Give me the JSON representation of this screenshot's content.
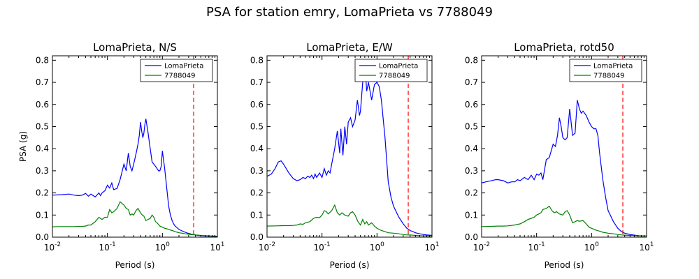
{
  "figure": {
    "title": "PSA for station emry, LomaPrieta vs 7788049"
  },
  "colors": {
    "series1": "#0000ff",
    "series2": "#008000",
    "marker": "#ff0000"
  },
  "chart_data": [
    {
      "type": "line",
      "title": "LomaPrieta, N/S",
      "xlabel": "Period (s)",
      "ylabel": "PSA (g)",
      "xscale": "log",
      "xlim": [
        0.01,
        10
      ],
      "ylim": [
        0,
        0.82
      ],
      "yticks": [
        "0.0",
        "0.1",
        "0.2",
        "0.3",
        "0.4",
        "0.5",
        "0.6",
        "0.7",
        "0.8"
      ],
      "xticks": [
        {
          "base": "10",
          "exp": "-2"
        },
        {
          "base": "10",
          "exp": "-1"
        },
        {
          "base": "10",
          "exp": "0"
        },
        {
          "base": "10",
          "exp": "1"
        }
      ],
      "vline": 3.7,
      "legend": "upper-right",
      "series": [
        {
          "name": "LomaPrieta",
          "color": "#0000ff",
          "x": [
            0.01,
            0.015,
            0.02,
            0.025,
            0.03,
            0.035,
            0.04,
            0.045,
            0.05,
            0.06,
            0.07,
            0.075,
            0.08,
            0.09,
            0.1,
            0.11,
            0.12,
            0.13,
            0.15,
            0.17,
            0.2,
            0.22,
            0.24,
            0.26,
            0.28,
            0.3,
            0.32,
            0.34,
            0.36,
            0.38,
            0.4,
            0.42,
            0.44,
            0.46,
            0.48,
            0.5,
            0.55,
            0.6,
            0.65,
            0.7,
            0.75,
            0.8,
            0.85,
            0.9,
            0.95,
            1.0,
            1.1,
            1.2,
            1.3,
            1.4,
            1.5,
            1.6,
            1.7,
            1.8,
            1.9,
            2.0,
            2.2,
            2.4,
            2.6,
            2.8,
            3.0,
            3.2,
            3.4,
            3.6,
            3.8,
            4.0,
            4.2,
            4.4,
            4.6,
            4.8,
            5.0,
            5.5,
            6.0,
            6.5,
            7.0,
            7.5,
            8.0,
            8.5,
            9.0,
            9.5,
            10.0
          ],
          "y": [
            0.19,
            0.192,
            0.195,
            0.19,
            0.188,
            0.19,
            0.198,
            0.185,
            0.195,
            0.182,
            0.2,
            0.188,
            0.2,
            0.21,
            0.235,
            0.222,
            0.245,
            0.215,
            0.22,
            0.26,
            0.33,
            0.3,
            0.38,
            0.32,
            0.3,
            0.33,
            0.36,
            0.39,
            0.42,
            0.46,
            0.52,
            0.48,
            0.45,
            0.47,
            0.51,
            0.535,
            0.47,
            0.4,
            0.34,
            0.33,
            0.32,
            0.31,
            0.3,
            0.3,
            0.32,
            0.39,
            0.31,
            0.22,
            0.14,
            0.1,
            0.075,
            0.06,
            0.05,
            0.045,
            0.04,
            0.035,
            0.03,
            0.026,
            0.022,
            0.019,
            0.017,
            0.015,
            0.013,
            0.012,
            0.011,
            0.01,
            0.009,
            0.008,
            0.008,
            0.007,
            0.007,
            0.006,
            0.005,
            0.005,
            0.004,
            0.004,
            0.004,
            0.003,
            0.003,
            0.003,
            0.003
          ]
        },
        {
          "name": "7788049",
          "color": "#008000",
          "x": [
            0.01,
            0.015,
            0.02,
            0.025,
            0.03,
            0.035,
            0.04,
            0.045,
            0.05,
            0.06,
            0.07,
            0.08,
            0.09,
            0.1,
            0.11,
            0.12,
            0.13,
            0.15,
            0.17,
            0.2,
            0.22,
            0.24,
            0.26,
            0.28,
            0.3,
            0.33,
            0.36,
            0.4,
            0.43,
            0.46,
            0.5,
            0.55,
            0.6,
            0.65,
            0.7,
            0.75,
            0.8,
            0.9,
            1.0,
            1.1,
            1.2,
            1.3,
            1.5,
            1.7,
            2.0,
            2.3,
            2.6,
            3.0,
            3.5,
            4.0,
            4.5,
            5.0,
            6.0,
            7.0,
            8.0,
            9.0,
            10.0
          ],
          "y": [
            0.047,
            0.048,
            0.048,
            0.048,
            0.049,
            0.049,
            0.05,
            0.055,
            0.055,
            0.07,
            0.09,
            0.08,
            0.09,
            0.09,
            0.125,
            0.11,
            0.115,
            0.13,
            0.16,
            0.145,
            0.13,
            0.125,
            0.1,
            0.105,
            0.1,
            0.12,
            0.13,
            0.11,
            0.1,
            0.095,
            0.075,
            0.08,
            0.085,
            0.1,
            0.09,
            0.07,
            0.065,
            0.05,
            0.045,
            0.04,
            0.038,
            0.035,
            0.03,
            0.025,
            0.02,
            0.018,
            0.015,
            0.013,
            0.011,
            0.01,
            0.009,
            0.008,
            0.007,
            0.006,
            0.005,
            0.005,
            0.004
          ]
        }
      ]
    },
    {
      "type": "line",
      "title": "LomaPrieta, E/W",
      "xlabel": "Period (s)",
      "ylabel": "",
      "xscale": "log",
      "xlim": [
        0.01,
        10
      ],
      "ylim": [
        0,
        0.82
      ],
      "yticks": [
        "0.0",
        "0.1",
        "0.2",
        "0.3",
        "0.4",
        "0.5",
        "0.6",
        "0.7",
        "0.8"
      ],
      "xticks": [
        {
          "base": "10",
          "exp": "-2"
        },
        {
          "base": "10",
          "exp": "-1"
        },
        {
          "base": "10",
          "exp": "0"
        },
        {
          "base": "10",
          "exp": "1"
        }
      ],
      "vline": 3.7,
      "legend": "upper-right",
      "series": [
        {
          "name": "LomaPrieta",
          "color": "#0000ff",
          "x": [
            0.01,
            0.012,
            0.014,
            0.016,
            0.018,
            0.02,
            0.025,
            0.03,
            0.035,
            0.04,
            0.045,
            0.05,
            0.055,
            0.06,
            0.065,
            0.07,
            0.075,
            0.08,
            0.09,
            0.1,
            0.11,
            0.12,
            0.13,
            0.14,
            0.15,
            0.17,
            0.19,
            0.21,
            0.22,
            0.24,
            0.26,
            0.28,
            0.3,
            0.33,
            0.36,
            0.4,
            0.44,
            0.48,
            0.5,
            0.55,
            0.6,
            0.65,
            0.7,
            0.8,
            0.9,
            1.0,
            1.1,
            1.2,
            1.4,
            1.6,
            1.8,
            2.0,
            2.5,
            3.0,
            3.5,
            4.0,
            4.5,
            5.0,
            6.0,
            7.0,
            8.0,
            9.0,
            10.0
          ],
          "y": [
            0.275,
            0.285,
            0.31,
            0.34,
            0.345,
            0.33,
            0.29,
            0.265,
            0.255,
            0.26,
            0.27,
            0.265,
            0.275,
            0.27,
            0.28,
            0.265,
            0.285,
            0.27,
            0.29,
            0.27,
            0.31,
            0.28,
            0.3,
            0.29,
            0.33,
            0.4,
            0.48,
            0.38,
            0.49,
            0.37,
            0.5,
            0.42,
            0.52,
            0.54,
            0.5,
            0.53,
            0.62,
            0.55,
            0.57,
            0.7,
            0.79,
            0.66,
            0.7,
            0.62,
            0.69,
            0.7,
            0.68,
            0.62,
            0.45,
            0.25,
            0.18,
            0.14,
            0.09,
            0.06,
            0.04,
            0.03,
            0.025,
            0.02,
            0.015,
            0.012,
            0.01,
            0.009,
            0.008
          ]
        },
        {
          "name": "7788049",
          "color": "#008000",
          "x": [
            0.01,
            0.015,
            0.02,
            0.025,
            0.03,
            0.035,
            0.04,
            0.045,
            0.05,
            0.06,
            0.07,
            0.08,
            0.09,
            0.1,
            0.11,
            0.12,
            0.13,
            0.15,
            0.17,
            0.19,
            0.21,
            0.23,
            0.26,
            0.3,
            0.33,
            0.36,
            0.4,
            0.45,
            0.5,
            0.55,
            0.6,
            0.65,
            0.7,
            0.8,
            0.9,
            1.0,
            1.2,
            1.4,
            1.6,
            2.0,
            2.5,
            3.0,
            3.5,
            4.0,
            5.0,
            6.0,
            7.0,
            8.0,
            10.0
          ],
          "y": [
            0.05,
            0.051,
            0.052,
            0.052,
            0.053,
            0.055,
            0.06,
            0.058,
            0.065,
            0.07,
            0.085,
            0.09,
            0.088,
            0.1,
            0.12,
            0.115,
            0.105,
            0.12,
            0.145,
            0.11,
            0.1,
            0.11,
            0.1,
            0.095,
            0.11,
            0.115,
            0.1,
            0.07,
            0.055,
            0.08,
            0.06,
            0.07,
            0.055,
            0.065,
            0.05,
            0.04,
            0.03,
            0.025,
            0.02,
            0.018,
            0.015,
            0.012,
            0.01,
            0.01,
            0.008,
            0.007,
            0.006,
            0.006,
            0.005
          ]
        }
      ]
    },
    {
      "type": "line",
      "title": "LomaPrieta, rotd50",
      "xlabel": "Period (s)",
      "ylabel": "",
      "xscale": "log",
      "xlim": [
        0.01,
        10
      ],
      "ylim": [
        0,
        0.82
      ],
      "yticks": [
        "0.0",
        "0.1",
        "0.2",
        "0.3",
        "0.4",
        "0.5",
        "0.6",
        "0.7",
        "0.8"
      ],
      "xticks": [
        {
          "base": "10",
          "exp": "-2"
        },
        {
          "base": "10",
          "exp": "-1"
        },
        {
          "base": "10",
          "exp": "0"
        },
        {
          "base": "10",
          "exp": "1"
        }
      ],
      "vline": 3.7,
      "legend": "upper-right",
      "series": [
        {
          "name": "LomaPrieta",
          "color": "#0000ff",
          "x": [
            0.01,
            0.012,
            0.015,
            0.018,
            0.02,
            0.025,
            0.03,
            0.035,
            0.04,
            0.045,
            0.05,
            0.06,
            0.07,
            0.08,
            0.09,
            0.1,
            0.11,
            0.12,
            0.13,
            0.15,
            0.17,
            0.2,
            0.22,
            0.24,
            0.26,
            0.28,
            0.3,
            0.33,
            0.36,
            0.4,
            0.45,
            0.5,
            0.55,
            0.6,
            0.65,
            0.7,
            0.8,
            0.9,
            1.0,
            1.1,
            1.2,
            1.3,
            1.4,
            1.6,
            1.8,
            2.0,
            2.5,
            3.0,
            3.5,
            4.0,
            5.0,
            6.0,
            7.0,
            8.0,
            10.0
          ],
          "y": [
            0.245,
            0.25,
            0.255,
            0.26,
            0.26,
            0.255,
            0.245,
            0.25,
            0.25,
            0.26,
            0.255,
            0.27,
            0.26,
            0.28,
            0.26,
            0.285,
            0.28,
            0.29,
            0.26,
            0.35,
            0.36,
            0.42,
            0.41,
            0.46,
            0.54,
            0.5,
            0.45,
            0.44,
            0.45,
            0.58,
            0.46,
            0.47,
            0.62,
            0.58,
            0.56,
            0.57,
            0.55,
            0.52,
            0.5,
            0.49,
            0.49,
            0.46,
            0.38,
            0.26,
            0.18,
            0.12,
            0.07,
            0.04,
            0.025,
            0.018,
            0.012,
            0.009,
            0.007,
            0.006,
            0.005
          ]
        },
        {
          "name": "7788049",
          "color": "#008000",
          "x": [
            0.01,
            0.015,
            0.02,
            0.025,
            0.03,
            0.035,
            0.04,
            0.045,
            0.05,
            0.06,
            0.07,
            0.08,
            0.09,
            0.1,
            0.11,
            0.12,
            0.13,
            0.15,
            0.17,
            0.19,
            0.21,
            0.23,
            0.26,
            0.3,
            0.33,
            0.36,
            0.4,
            0.45,
            0.5,
            0.55,
            0.6,
            0.7,
            0.8,
            0.9,
            1.0,
            1.2,
            1.4,
            1.6,
            2.0,
            2.5,
            3.0,
            3.5,
            4.0,
            5.0,
            6.0,
            7.0,
            8.0,
            10.0
          ],
          "y": [
            0.048,
            0.049,
            0.05,
            0.05,
            0.051,
            0.053,
            0.055,
            0.058,
            0.06,
            0.07,
            0.08,
            0.085,
            0.09,
            0.1,
            0.105,
            0.11,
            0.125,
            0.13,
            0.14,
            0.12,
            0.11,
            0.115,
            0.105,
            0.1,
            0.115,
            0.12,
            0.1,
            0.065,
            0.07,
            0.075,
            0.072,
            0.075,
            0.06,
            0.045,
            0.04,
            0.032,
            0.027,
            0.022,
            0.018,
            0.015,
            0.012,
            0.01,
            0.009,
            0.008,
            0.007,
            0.006,
            0.006,
            0.005
          ]
        }
      ]
    }
  ]
}
